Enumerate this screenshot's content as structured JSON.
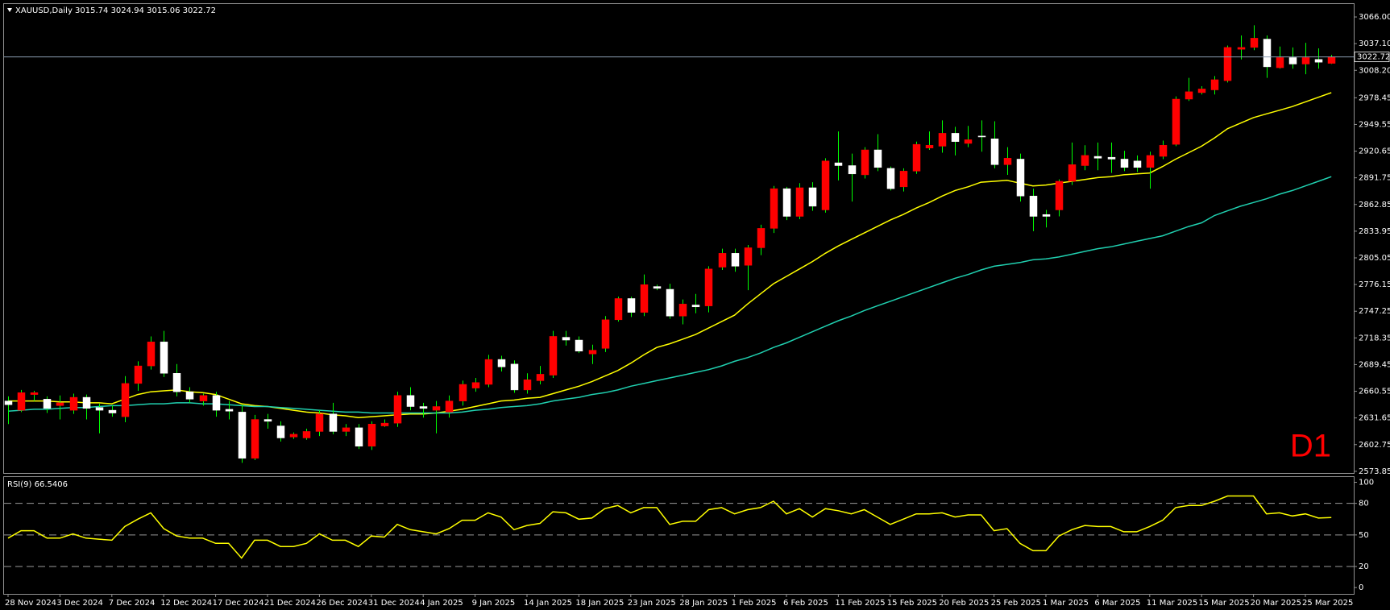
{
  "chart_data": {
    "type": "candlestick",
    "title": "XAUUSD,Daily  3015.74 3024.94 3015.06 3022.72",
    "timeframe_label": "D1",
    "categories": [
      "28 Nov 2024",
      null,
      null,
      null,
      "3 Dec 2024",
      null,
      null,
      null,
      "7 Dec 2024",
      null,
      null,
      null,
      "12 Dec 2024",
      null,
      null,
      null,
      "17 Dec 2024",
      null,
      null,
      null,
      "21 Dec 2024",
      null,
      null,
      null,
      "26 Dec 2024",
      null,
      null,
      null,
      "31 Dec 2024",
      null,
      null,
      null,
      "4 Jan 2025",
      null,
      null,
      null,
      "9 Jan 2025",
      null,
      null,
      null,
      "14 Jan 2025",
      null,
      null,
      null,
      "18 Jan 2025",
      null,
      null,
      null,
      "23 Jan 2025",
      null,
      null,
      null,
      "28 Jan 2025",
      null,
      null,
      null,
      "1 Feb 2025",
      null,
      null,
      null,
      "6 Feb 2025",
      null,
      null,
      null,
      "11 Feb 2025",
      null,
      null,
      null,
      "15 Feb 2025",
      null,
      null,
      null,
      "20 Feb 2025",
      null,
      null,
      null,
      "25 Feb 2025",
      null,
      null,
      null,
      "1 Mar 2025",
      null,
      null,
      null,
      "6 Mar 2025",
      null,
      null,
      null,
      "11 Mar 2025",
      null,
      null,
      null,
      "15 Mar 2025",
      null,
      null,
      null,
      "20 Mar 2025",
      null,
      null,
      null,
      "25 Mar 2025",
      null,
      null
    ],
    "open": [
      2650,
      2640,
      2657,
      2652,
      2645,
      2640,
      2654,
      2643,
      2640,
      2633,
      2669,
      2688,
      2714,
      2680,
      2660,
      2650,
      2656,
      2641,
      2638,
      2588,
      2630,
      2623,
      2611,
      2610,
      2617,
      2636,
      2617,
      2621,
      2601,
      2623,
      2626,
      2656,
      2644,
      2640,
      2638,
      2650,
      2664,
      2668,
      2695,
      2690,
      2662,
      2672,
      2678,
      2719,
      2716,
      2701,
      2707,
      2738,
      2761,
      2746,
      2774,
      2771,
      2742,
      2754,
      2753,
      2795,
      2810,
      2797,
      2816,
      2837,
      2880,
      2850,
      2881,
      2857,
      2908,
      2905,
      2895,
      2922,
      2902,
      2882,
      2899,
      2924,
      2926,
      2940,
      2929,
      2937,
      2934,
      2906,
      2912,
      2872,
      2852,
      2857,
      2888,
      2905,
      2915,
      2914,
      2912,
      2910,
      2903,
      2915,
      2928,
      2977,
      2984,
      2987,
      2997,
      3031,
      3033,
      3042,
      3011,
      3022,
      3015,
      3020,
      3015.74
    ],
    "high": [
      2655,
      2662,
      2661,
      2655,
      2656,
      2658,
      2657,
      2647,
      2645,
      2677,
      2693,
      2720,
      2726,
      2690,
      2665,
      2658,
      2660,
      2650,
      2646,
      2635,
      2636,
      2628,
      2616,
      2620,
      2640,
      2648,
      2625,
      2625,
      2628,
      2630,
      2660,
      2665,
      2648,
      2650,
      2656,
      2672,
      2675,
      2700,
      2699,
      2694,
      2680,
      2688,
      2726,
      2726,
      2720,
      2711,
      2742,
      2763,
      2763,
      2787,
      2776,
      2777,
      2760,
      2766,
      2796,
      2815,
      2815,
      2819,
      2841,
      2883,
      2882,
      2886,
      2887,
      2913,
      2942,
      2918,
      2925,
      2939,
      2904,
      2902,
      2931,
      2942,
      2954,
      2947,
      2948,
      2954,
      2953,
      2925,
      2918,
      2880,
      2857,
      2890,
      2930,
      2927,
      2930,
      2930,
      2921,
      2916,
      2920,
      2932,
      2980,
      3000,
      2991,
      3002,
      3035,
      3046,
      3057,
      3046,
      3034,
      3033,
      3038,
      3032,
      3024.94
    ],
    "low": [
      2625,
      2638,
      2650,
      2637,
      2630,
      2636,
      2630,
      2615,
      2633,
      2627,
      2661,
      2684,
      2676,
      2655,
      2648,
      2645,
      2633,
      2630,
      2583,
      2586,
      2620,
      2606,
      2609,
      2608,
      2612,
      2614,
      2612,
      2598,
      2597,
      2622,
      2622,
      2640,
      2632,
      2615,
      2632,
      2645,
      2660,
      2665,
      2682,
      2659,
      2658,
      2668,
      2675,
      2710,
      2702,
      2690,
      2703,
      2736,
      2741,
      2742,
      2770,
      2739,
      2733,
      2745,
      2746,
      2792,
      2790,
      2770,
      2808,
      2832,
      2846,
      2847,
      2856,
      2854,
      2889,
      2866,
      2891,
      2899,
      2878,
      2877,
      2896,
      2922,
      2919,
      2916,
      2925,
      2920,
      2902,
      2895,
      2866,
      2834,
      2838,
      2850,
      2884,
      2900,
      2900,
      2897,
      2899,
      2898,
      2880,
      2912,
      2926,
      2975,
      2982,
      2982,
      2995,
      3020,
      3030,
      3000,
      3010,
      3010,
      3004,
      3010,
      3015.06
    ],
    "close": [
      2646,
      2659,
      2659,
      2642,
      2648,
      2654,
      2642,
      2640,
      2637,
      2669,
      2688,
      2714,
      2680,
      2660,
      2652,
      2656,
      2640,
      2639,
      2588,
      2630,
      2628,
      2610,
      2614,
      2617,
      2636,
      2617,
      2621,
      2601,
      2625,
      2626,
      2656,
      2644,
      2642,
      2644,
      2650,
      2668,
      2670,
      2695,
      2687,
      2662,
      2673,
      2679,
      2720,
      2716,
      2704,
      2705,
      2738,
      2761,
      2746,
      2776,
      2772,
      2742,
      2755,
      2752,
      2793,
      2810,
      2796,
      2816,
      2837,
      2880,
      2850,
      2881,
      2861,
      2910,
      2905,
      2896,
      2922,
      2903,
      2880,
      2899,
      2928,
      2927,
      2940,
      2931,
      2933,
      2936,
      2906,
      2913,
      2872,
      2850,
      2850,
      2888,
      2906,
      2916,
      2913,
      2912,
      2903,
      2903,
      2916,
      2927,
      2977,
      2985,
      2988,
      2998,
      3033,
      3033,
      3043,
      3012,
      3022,
      3015,
      3022,
      3017,
      3022.72
    ],
    "up_color": "#ff0000",
    "down_color": "#ffffff",
    "wick_color": "#00ff00",
    "ylim": [
      2572,
      3080
    ],
    "yticks": [
      {
        "value": 3066,
        "label": "3066.00"
      },
      {
        "value": 3037.1,
        "label": "3037.10"
      },
      {
        "value": 3008.2,
        "label": "3008.20"
      },
      {
        "value": 2978.45,
        "label": "2978.45"
      },
      {
        "value": 2949.55,
        "label": "2949.55"
      },
      {
        "value": 2920.65,
        "label": "2920.65"
      },
      {
        "value": 2891.75,
        "label": "2891.75"
      },
      {
        "value": 2862.85,
        "label": "2862.85"
      },
      {
        "value": 2833.95,
        "label": "2833.95"
      },
      {
        "value": 2805.05,
        "label": "2805.05"
      },
      {
        "value": 2776.15,
        "label": "2776.15"
      },
      {
        "value": 2747.25,
        "label": "2747.25"
      },
      {
        "value": 2718.35,
        "label": "2718.35"
      },
      {
        "value": 2689.45,
        "label": "2689.45"
      },
      {
        "value": 2660.55,
        "label": "2660.55"
      },
      {
        "value": 2631.65,
        "label": "2631.65"
      },
      {
        "value": 2602.75,
        "label": "2602.75"
      },
      {
        "value": 2573.85,
        "label": "2573.85"
      }
    ],
    "last_price": 3022.72,
    "overlays": [
      {
        "color": "#ffff00",
        "values": [
          2650,
          2650,
          2650,
          2650,
          2649,
          2649,
          2648,
          2648,
          2647,
          2652,
          2657,
          2660,
          2661,
          2662,
          2660,
          2659,
          2657,
          2652,
          2647,
          2645,
          2644,
          2642,
          2640,
          2638,
          2637,
          2635,
          2634,
          2632,
          2633,
          2634,
          2635,
          2636,
          2636,
          2637,
          2639,
          2641,
          2644,
          2647,
          2650,
          2651,
          2653,
          2654,
          2658,
          2662,
          2666,
          2671,
          2677,
          2683,
          2691,
          2700,
          2708,
          2712,
          2717,
          2722,
          2729,
          2736,
          2743,
          2755,
          2766,
          2777,
          2785,
          2793,
          2801,
          2810,
          2818,
          2825,
          2832,
          2839,
          2846,
          2852,
          2859,
          2865,
          2872,
          2878,
          2882,
          2887,
          2888,
          2889,
          2886,
          2883,
          2884,
          2886,
          2888,
          2890,
          2892,
          2893,
          2895,
          2896,
          2897,
          2904,
          2912,
          2919,
          2926,
          2935,
          2945,
          2951,
          2957,
          2961,
          2965,
          2969,
          2974,
          2979,
          2984
        ]
      },
      {
        "color": "#20d0b0",
        "values": [
          2639,
          2640,
          2641,
          2641,
          2642,
          2643,
          2643,
          2644,
          2645,
          2645,
          2646,
          2647,
          2647,
          2648,
          2648,
          2647,
          2647,
          2646,
          2645,
          2644,
          2644,
          2643,
          2642,
          2641,
          2640,
          2639,
          2638,
          2638,
          2637,
          2637,
          2637,
          2637,
          2637,
          2637,
          2637,
          2638,
          2640,
          2641,
          2643,
          2644,
          2645,
          2647,
          2650,
          2652,
          2654,
          2657,
          2659,
          2662,
          2666,
          2669,
          2672,
          2675,
          2678,
          2681,
          2684,
          2688,
          2693,
          2697,
          2702,
          2708,
          2713,
          2719,
          2725,
          2731,
          2737,
          2742,
          2748,
          2753,
          2758,
          2763,
          2768,
          2773,
          2778,
          2783,
          2787,
          2792,
          2796,
          2798,
          2800,
          2803,
          2804,
          2806,
          2809,
          2812,
          2815,
          2817,
          2820,
          2823,
          2826,
          2829,
          2834,
          2839,
          2843,
          2851,
          2856,
          2861,
          2865,
          2869,
          2874,
          2878,
          2883,
          2888,
          2893
        ]
      }
    ],
    "indicator": {
      "type": "line",
      "title": "RSI(9) 66.5406",
      "color": "#ffff00",
      "values": [
        47,
        54,
        54,
        47,
        47,
        51,
        47,
        46,
        45,
        58,
        65,
        71,
        56,
        49,
        47,
        47,
        42,
        42,
        28,
        45,
        45,
        39,
        39,
        42,
        51,
        45,
        45,
        39,
        49,
        48,
        60,
        55,
        53,
        51,
        56,
        64,
        64,
        71,
        67,
        55,
        59,
        61,
        72,
        71,
        65,
        66,
        75,
        78,
        71,
        76,
        76,
        60,
        63,
        63,
        74,
        76,
        70,
        74,
        76,
        82,
        70,
        75,
        67,
        75,
        73,
        70,
        74,
        67,
        60,
        65,
        70,
        70,
        71,
        67,
        69,
        69,
        54,
        56,
        42,
        35,
        35,
        49,
        55,
        59,
        58,
        58,
        53,
        53,
        58,
        64,
        76,
        78,
        78,
        82,
        87,
        87,
        87,
        70,
        71,
        68,
        70,
        66,
        66.5406
      ],
      "ylim": [
        -6,
        105
      ],
      "yticks": [
        100,
        80,
        50,
        20,
        0
      ],
      "levels": [
        80,
        50,
        20
      ]
    }
  }
}
